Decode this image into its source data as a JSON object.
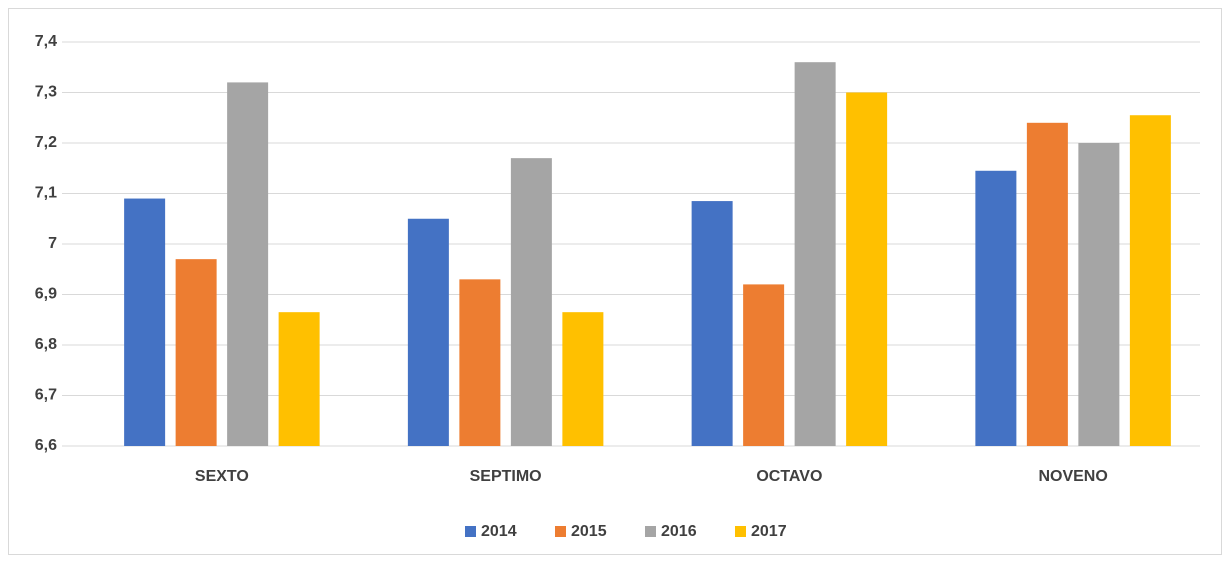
{
  "chart_data": {
    "type": "bar",
    "categories": [
      "SEXTO",
      "SEPTIMO",
      "OCTAVO",
      "NOVENO"
    ],
    "series": [
      {
        "name": "2014",
        "color": "#4472c4",
        "values": [
          7.09,
          7.05,
          7.085,
          7.145
        ]
      },
      {
        "name": "2015",
        "color": "#ed7d31",
        "values": [
          6.97,
          6.93,
          6.92,
          7.24
        ]
      },
      {
        "name": "2016",
        "color": "#a5a5a5",
        "values": [
          7.32,
          7.17,
          7.36,
          7.2
        ]
      },
      {
        "name": "2017",
        "color": "#ffc000",
        "values": [
          6.865,
          6.865,
          7.3,
          7.255
        ]
      }
    ],
    "ylim": [
      6.6,
      7.4
    ],
    "yticks": [
      {
        "value": 6.6,
        "label": "6,6"
      },
      {
        "value": 6.7,
        "label": "6,7"
      },
      {
        "value": 6.8,
        "label": "6,8"
      },
      {
        "value": 6.9,
        "label": "6,9"
      },
      7,
      {
        "value": 7.1,
        "label": "7,1"
      },
      {
        "value": 7.2,
        "label": "7,2"
      },
      {
        "value": 7.3,
        "label": "7,3"
      },
      {
        "value": 7.4,
        "label": "7,4"
      }
    ],
    "grid": true,
    "legend": "bottom"
  }
}
